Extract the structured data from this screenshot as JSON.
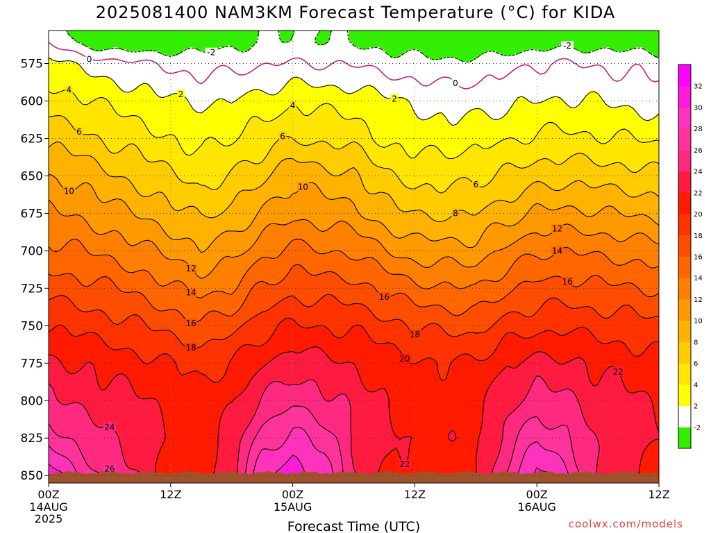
{
  "title": "2025081400 NAM3KM Forecast Temperature (°C) for KIDA",
  "watermark": "coolwx.com/models",
  "chart_data": {
    "type": "heatmap",
    "title": "2025081400 NAM3KM Forecast Temperature (°C) for KIDA",
    "xlabel": "Forecast Time (UTC)",
    "ylabel": "",
    "x_ticks": [
      {
        "hours": 0,
        "label": "00Z",
        "sub": [
          "14AUG",
          "2025"
        ]
      },
      {
        "hours": 12,
        "label": "12Z",
        "sub": []
      },
      {
        "hours": 24,
        "label": "00Z",
        "sub": [
          "15AUG"
        ]
      },
      {
        "hours": 36,
        "label": "12Z",
        "sub": []
      },
      {
        "hours": 48,
        "label": "00Z",
        "sub": [
          "16AUG"
        ]
      },
      {
        "hours": 60,
        "label": "12Z",
        "sub": []
      }
    ],
    "x_range": [
      0,
      60
    ],
    "y_ticks": [
      575,
      600,
      625,
      650,
      675,
      700,
      725,
      750,
      775,
      800,
      825,
      850
    ],
    "y_range": [
      553,
      855
    ],
    "y_axis_pressure": true,
    "grid": true,
    "colorbar": {
      "labels": [
        "-2",
        "2",
        "4",
        "6",
        "8",
        "10",
        "12",
        "14",
        "16",
        "18",
        "20",
        "22",
        "24",
        "26",
        "28",
        "30",
        "32"
      ],
      "colors": [
        "#33ee00",
        "#ffffff",
        "#ffff00",
        "#ffe500",
        "#ffcc00",
        "#ffb300",
        "#ff9900",
        "#ff8000",
        "#ff6600",
        "#ff4d00",
        "#ff3300",
        "#ff1a00",
        "#ff1a40",
        "#ff2a80",
        "#ff3399",
        "#ff33bb",
        "#ff1ad9",
        "#ff00ff"
      ]
    },
    "contour_labels": [
      "-2",
      "-2",
      "0",
      "0",
      "2",
      "2",
      "4",
      "4",
      "6",
      "6",
      "6",
      "8",
      "10",
      "10",
      "12",
      "12",
      "14",
      "14",
      "16",
      "16",
      "16",
      "18",
      "18",
      "20",
      "22",
      "22",
      "24",
      "26"
    ],
    "temperature_grid": {
      "hours": [
        0,
        3,
        6,
        9,
        12,
        15,
        18,
        21,
        24,
        27,
        30,
        33,
        36,
        39,
        42,
        45,
        48,
        51,
        54,
        57,
        60
      ],
      "levels": [
        560,
        575,
        600,
        625,
        650,
        675,
        700,
        725,
        750,
        775,
        800,
        825,
        850
      ],
      "values": [
        [
          -0.5,
          -2.5,
          -3.8,
          -4.2,
          -3.6,
          -3.2,
          -2.5,
          -2.2,
          -1.6,
          -2.0,
          -2.3,
          -2.8,
          -3.4,
          -3.8,
          -4.1,
          -3.9,
          -3.3,
          -3.0,
          -3.1,
          -3.2,
          -3.3
        ],
        [
          3.0,
          1.5,
          0.8,
          0.3,
          -0.4,
          -0.8,
          -0.6,
          -0.3,
          0.2,
          -0.1,
          -0.2,
          -0.8,
          -1.3,
          -1.5,
          -1.2,
          -0.6,
          0.0,
          0.1,
          -0.2,
          -0.5,
          -0.9
        ],
        [
          5.0,
          4.3,
          3.5,
          2.9,
          2.2,
          1.7,
          2.1,
          2.8,
          3.6,
          3.4,
          3.2,
          2.4,
          1.7,
          1.2,
          1.1,
          1.4,
          2.0,
          2.2,
          1.9,
          1.5,
          1.0
        ],
        [
          7.4,
          6.8,
          5.6,
          4.9,
          4.1,
          3.3,
          4.0,
          4.9,
          5.9,
          5.6,
          5.3,
          3.7,
          3.2,
          3.0,
          3.4,
          3.7,
          4.4,
          4.5,
          4.2,
          4.0,
          3.7
        ],
        [
          10.0,
          9.4,
          8.3,
          7.3,
          6.2,
          5.3,
          6.1,
          7.6,
          9.6,
          8.7,
          8.3,
          6.3,
          5.4,
          5.3,
          5.6,
          6.3,
          7.1,
          7.3,
          7.1,
          6.8,
          6.4
        ],
        [
          12.3,
          11.7,
          10.7,
          9.8,
          8.7,
          7.6,
          8.5,
          10.2,
          11.6,
          11.1,
          10.6,
          8.9,
          7.8,
          7.7,
          8.0,
          9.1,
          10.3,
          10.5,
          10.2,
          9.8,
          9.4
        ],
        [
          14.6,
          14.1,
          13.4,
          12.5,
          11.4,
          10.3,
          11.2,
          13.4,
          14.6,
          14.1,
          13.7,
          12.2,
          11.0,
          10.9,
          10.8,
          12.4,
          13.8,
          13.9,
          13.6,
          13.2,
          12.8
        ],
        [
          17.3,
          16.8,
          16.2,
          15.4,
          14.3,
          13.2,
          14.0,
          16.2,
          17.3,
          17.0,
          16.8,
          15.7,
          14.5,
          14.3,
          14.0,
          15.6,
          16.6,
          16.8,
          16.4,
          16.2,
          15.8
        ],
        [
          19.8,
          19.4,
          18.8,
          18.1,
          17.3,
          16.4,
          17.3,
          19.2,
          20.2,
          19.9,
          19.6,
          18.8,
          17.9,
          17.5,
          17.4,
          18.8,
          19.4,
          19.6,
          19.2,
          18.9,
          18.5
        ],
        [
          22.4,
          21.9,
          21.3,
          20.7,
          20.0,
          19.2,
          20.2,
          21.8,
          23.1,
          22.6,
          21.9,
          21.1,
          20.3,
          20.1,
          20.3,
          21.8,
          22.7,
          22.4,
          21.6,
          21.1,
          20.6
        ],
        [
          24.3,
          23.4,
          22.8,
          22.2,
          21.3,
          20.6,
          21.7,
          24.2,
          25.6,
          24.6,
          23.3,
          22.2,
          21.4,
          21.1,
          21.4,
          23.4,
          24.9,
          24.3,
          22.9,
          22.4,
          21.6
        ],
        [
          27.4,
          25.3,
          24.2,
          23.3,
          21.8,
          20.9,
          22.8,
          26.8,
          28.6,
          27.1,
          24.2,
          22.6,
          21.8,
          21.4,
          21.9,
          24.7,
          27.7,
          26.3,
          23.4,
          22.8,
          22.2
        ],
        [
          31.3,
          28.0,
          25.1,
          23.6,
          21.1,
          20.3,
          23.7,
          29.4,
          31.6,
          29.1,
          24.3,
          21.7,
          20.9,
          20.6,
          21.4,
          26.3,
          30.9,
          28.3,
          23.7,
          22.2,
          21.0
        ]
      ]
    }
  }
}
